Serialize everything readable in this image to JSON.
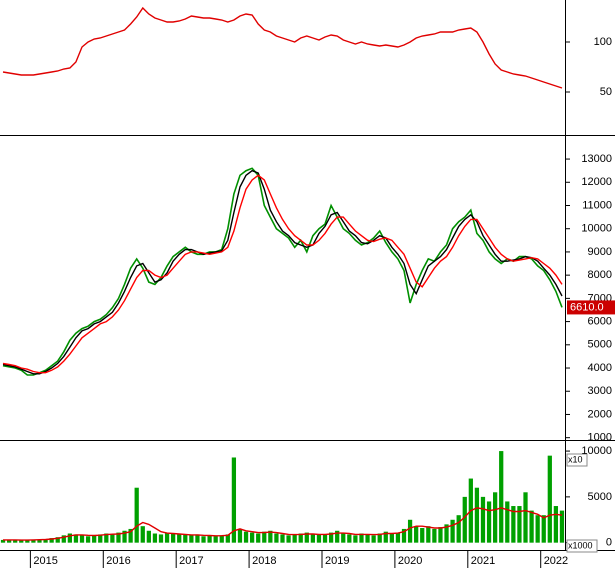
{
  "chart_data": [
    {
      "type": "line",
      "ylim": [
        9,
        142
      ],
      "yticks": [
        50,
        100
      ],
      "series": [
        {
          "color": "#e00000",
          "values": [
            70,
            69,
            68,
            67,
            67,
            67,
            68,
            69,
            70,
            71,
            73,
            74,
            80,
            95,
            100,
            103,
            104,
            106,
            108,
            110,
            112,
            118,
            125,
            134,
            128,
            124,
            122,
            120,
            120,
            121,
            123,
            126,
            125,
            124,
            124,
            123,
            122,
            120,
            122,
            126,
            128,
            127,
            118,
            112,
            110,
            106,
            104,
            102,
            100,
            104,
            106,
            104,
            102,
            105,
            107,
            106,
            102,
            100,
            98,
            100,
            98,
            97,
            96,
            97,
            96,
            95,
            97,
            100,
            104,
            106,
            107,
            108,
            110,
            110,
            110,
            112,
            113,
            114,
            110,
            100,
            88,
            78,
            72,
            70,
            68,
            67,
            66,
            64,
            62,
            60,
            58,
            56,
            54
          ]
        }
      ]
    },
    {
      "type": "line",
      "ylim": [
        900,
        13950
      ],
      "yticks": [
        1000,
        2000,
        3000,
        4000,
        5000,
        6000,
        7000,
        8000,
        9000,
        10000,
        11000,
        12000,
        13000
      ],
      "unit_label": "x10",
      "last_value_label": "6610.0",
      "series": [
        {
          "color": "#009000",
          "values": [
            4100,
            4050,
            4000,
            3900,
            3700,
            3700,
            3800,
            3900,
            4100,
            4300,
            4700,
            5200,
            5500,
            5700,
            5800,
            6000,
            6100,
            6300,
            6600,
            7000,
            7600,
            8300,
            8700,
            8300,
            7700,
            7600,
            7900,
            8400,
            8800,
            9000,
            9200,
            9000,
            8900,
            8900,
            9000,
            9000,
            9100,
            10000,
            11500,
            12300,
            12500,
            12600,
            12300,
            11000,
            10500,
            10000,
            9800,
            9600,
            9200,
            9500,
            9000,
            9700,
            10000,
            10200,
            11000,
            10500,
            10000,
            9800,
            9500,
            9300,
            9400,
            9600,
            9900,
            9400,
            9000,
            8700,
            8200,
            6800,
            7600,
            8200,
            8700,
            8600,
            9000,
            9300,
            10000,
            10300,
            10500,
            10800,
            9800,
            9500,
            9000,
            8700,
            8500,
            8700,
            8600,
            8800,
            8800,
            8700,
            8400,
            8200,
            7800,
            7300,
            6610
          ]
        },
        {
          "color": "#000000",
          "values": [
            4150,
            4100,
            4050,
            3950,
            3850,
            3750,
            3750,
            3850,
            4000,
            4200,
            4500,
            4900,
            5300,
            5600,
            5700,
            5900,
            6000,
            6200,
            6400,
            6800,
            7300,
            7900,
            8400,
            8500,
            8100,
            7700,
            7800,
            8100,
            8600,
            8900,
            9100,
            9100,
            9000,
            8900,
            8950,
            9000,
            9050,
            9500,
            10700,
            11800,
            12300,
            12500,
            12400,
            11700,
            10800,
            10300,
            9900,
            9700,
            9400,
            9300,
            9200,
            9300,
            9800,
            10100,
            10600,
            10700,
            10300,
            9900,
            9700,
            9400,
            9350,
            9500,
            9700,
            9600,
            9200,
            8900,
            8500,
            7600,
            7200,
            7800,
            8400,
            8600,
            8800,
            9100,
            9600,
            10100,
            10400,
            10600,
            10300,
            9700,
            9300,
            8900,
            8600,
            8600,
            8650,
            8700,
            8800,
            8750,
            8600,
            8300,
            8000,
            7600,
            7100
          ]
        },
        {
          "color": "#ff0000",
          "values": [
            4200,
            4150,
            4100,
            4000,
            3950,
            3850,
            3800,
            3800,
            3900,
            4050,
            4300,
            4600,
            4950,
            5300,
            5500,
            5700,
            5900,
            6000,
            6200,
            6500,
            6900,
            7400,
            7900,
            8200,
            8200,
            8000,
            7900,
            8000,
            8300,
            8600,
            8900,
            9000,
            9000,
            8950,
            8900,
            8950,
            9000,
            9200,
            9900,
            10900,
            11700,
            12100,
            12300,
            12100,
            11500,
            10900,
            10400,
            10000,
            9700,
            9500,
            9300,
            9300,
            9500,
            9800,
            10200,
            10500,
            10500,
            10200,
            9900,
            9700,
            9500,
            9450,
            9550,
            9600,
            9500,
            9200,
            8900,
            8300,
            7700,
            7500,
            7900,
            8300,
            8600,
            8800,
            9200,
            9700,
            10100,
            10400,
            10400,
            10000,
            9600,
            9200,
            8900,
            8700,
            8600,
            8650,
            8700,
            8750,
            8700,
            8500,
            8300,
            8000,
            7600
          ]
        }
      ]
    },
    {
      "type": "bar",
      "ylim": [
        -800,
        11100
      ],
      "yticks": [
        0,
        5000,
        10000
      ],
      "unit_label": "x1000",
      "categories": [
        null,
        null,
        null,
        null,
        null,
        "2015",
        null,
        null,
        null,
        null,
        null,
        null,
        null,
        null,
        null,
        null,
        null,
        "2016",
        null,
        null,
        null,
        null,
        null,
        null,
        null,
        null,
        null,
        null,
        null,
        "2017",
        null,
        null,
        null,
        null,
        null,
        null,
        null,
        null,
        null,
        null,
        null,
        "2018",
        null,
        null,
        null,
        null,
        null,
        null,
        null,
        null,
        null,
        null,
        null,
        "2019",
        null,
        null,
        null,
        null,
        null,
        null,
        null,
        null,
        null,
        null,
        null,
        "2020",
        null,
        null,
        null,
        null,
        null,
        null,
        null,
        null,
        null,
        null,
        null,
        "2021",
        null,
        null,
        null,
        null,
        null,
        null,
        null,
        null,
        null,
        null,
        null,
        "2022",
        null,
        null,
        null
      ],
      "series": [
        {
          "color": "#00a000",
          "values": [
            300,
            300,
            250,
            250,
            300,
            300,
            350,
            400,
            500,
            600,
            800,
            1000,
            900,
            800,
            700,
            800,
            900,
            1000,
            900,
            1100,
            1300,
            1500,
            6000,
            1800,
            1300,
            1000,
            900,
            1100,
            1000,
            900,
            900,
            800,
            900,
            700,
            800,
            700,
            800,
            900,
            9300,
            1500,
            1200,
            1100,
            1000,
            1200,
            1300,
            1000,
            900,
            800,
            900,
            1000,
            1100,
            900,
            900,
            900,
            1100,
            1300,
            1000,
            900,
            800,
            1000,
            900,
            800,
            1000,
            1200,
            1000,
            1100,
            1500,
            2500,
            1800,
            1600,
            1800,
            1500,
            1700,
            2000,
            2500,
            3000,
            5000,
            7000,
            6000,
            5000,
            4500,
            5500,
            10000,
            4500,
            4000,
            4000,
            5500,
            3500,
            3000,
            3000,
            9500,
            4000,
            3500
          ]
        },
        {
          "color": "#e00000",
          "values": [
            300,
            300,
            300,
            280,
            280,
            300,
            320,
            350,
            400,
            480,
            600,
            750,
            850,
            850,
            800,
            780,
            820,
            880,
            920,
            950,
            1050,
            1200,
            1800,
            2200,
            2000,
            1600,
            1200,
            1050,
            1000,
            950,
            900,
            850,
            850,
            800,
            780,
            750,
            760,
            800,
            1300,
            1500,
            1300,
            1200,
            1100,
            1100,
            1150,
            1100,
            1000,
            900,
            880,
            900,
            950,
            950,
            900,
            900,
            950,
            1050,
            1050,
            1000,
            900,
            900,
            900,
            880,
            900,
            1000,
            1000,
            1050,
            1200,
            1600,
            1800,
            1800,
            1700,
            1600,
            1600,
            1700,
            1900,
            2200,
            2800,
            3500,
            3800,
            3700,
            3500,
            3600,
            3800,
            3600,
            3400,
            3400,
            3500,
            3300,
            3100,
            2700,
            3000,
            3100,
            3000
          ]
        }
      ]
    }
  ]
}
